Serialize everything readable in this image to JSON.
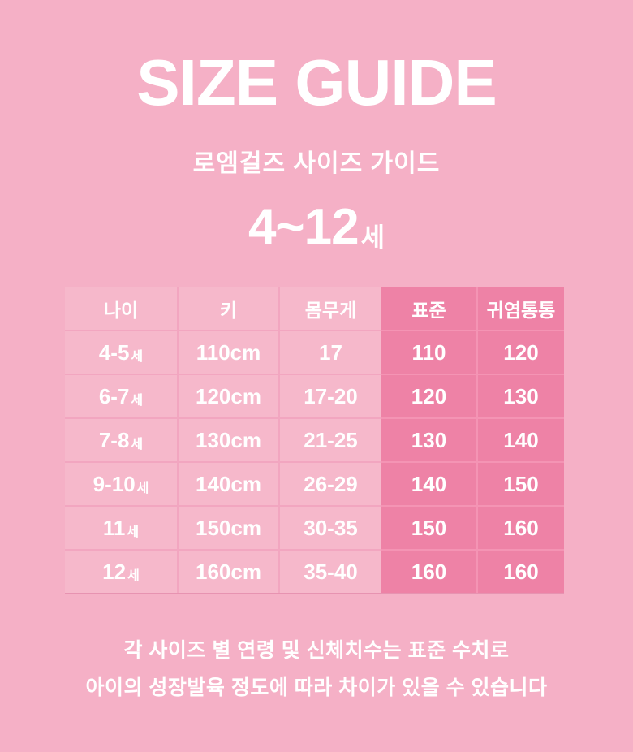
{
  "page": {
    "title": "SIZE GUIDE",
    "subtitle": "로엠걸즈 사이즈 가이드",
    "age_range": "4~12",
    "age_range_suffix": "세",
    "footer_line1": "각 사이즈 별 연령 및 신체치수는 표준 수치로",
    "footer_line2": "아이의 성장발육 정도에 따라 차이가 있을 수 있습니다"
  },
  "colors": {
    "background": "#f5b0c6",
    "cell_light": "#f6b8cb",
    "cell_dark": "#ee82a6",
    "divider_light": "#f2a6c0",
    "divider_dark": "#f494b4",
    "table_bottom": "#e793b1",
    "text": "#ffffff"
  },
  "chart_data": {
    "type": "table",
    "title": "SIZE GUIDE",
    "subtitle": "로엠걸즈 사이즈 가이드",
    "age_span": "4~12세",
    "columns": [
      "나이",
      "키",
      "몸무게",
      "표준",
      "귀염통통"
    ],
    "highlighted_columns": [
      "표준",
      "귀염통통"
    ],
    "rows": [
      {
        "age": "4-5",
        "age_suffix": "세",
        "height": "110cm",
        "weight": "17",
        "standard": "110",
        "chubby": "120"
      },
      {
        "age": "6-7",
        "age_suffix": "세",
        "height": "120cm",
        "weight": "17-20",
        "standard": "120",
        "chubby": "130"
      },
      {
        "age": "7-8",
        "age_suffix": "세",
        "height": "130cm",
        "weight": "21-25",
        "standard": "130",
        "chubby": "140"
      },
      {
        "age": "9-10",
        "age_suffix": "세",
        "height": "140cm",
        "weight": "26-29",
        "standard": "140",
        "chubby": "150"
      },
      {
        "age": "11",
        "age_suffix": "세",
        "height": "150cm",
        "weight": "30-35",
        "standard": "150",
        "chubby": "160"
      },
      {
        "age": "12",
        "age_suffix": "세",
        "height": "160cm",
        "weight": "35-40",
        "standard": "160",
        "chubby": "160"
      }
    ],
    "footnote": "각 사이즈 별 연령 및 신체치수는 표준 수치로 아이의 성장발육 정도에 따라 차이가 있을 수 있습니다"
  }
}
